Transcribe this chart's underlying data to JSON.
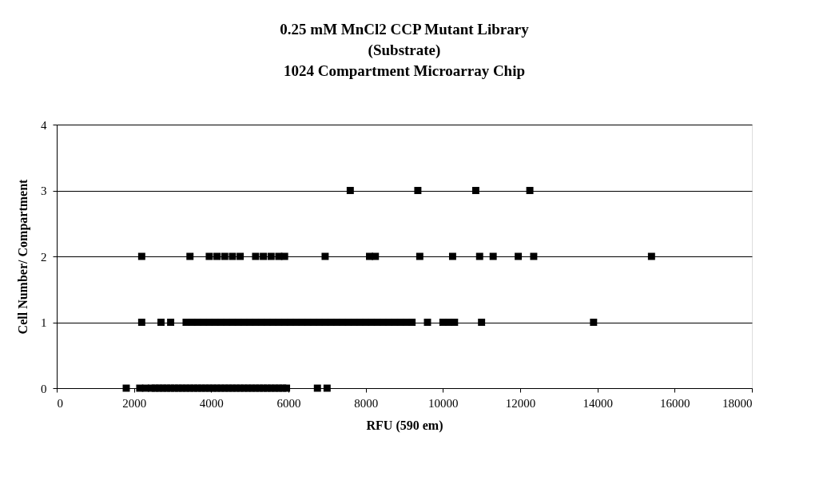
{
  "chart_data": {
    "type": "scatter",
    "title": [
      "0.25 mM MnCl2 CCP Mutant Library",
      "(Substrate)",
      "1024 Compartment Microarray Chip"
    ],
    "xlabel": "RFU (590 em)",
    "ylabel": "Cell Number/ Compartment",
    "xlim": [
      0,
      18000
    ],
    "xticks": [
      0,
      2000,
      4000,
      6000,
      8000,
      10000,
      12000,
      14000,
      16000,
      18000
    ],
    "ylim": [
      0,
      4
    ],
    "yticks": [
      0,
      1,
      2,
      3,
      4
    ],
    "grid": "y",
    "marker": "square",
    "legend": false,
    "series": [
      {
        "color": "#000000",
        "x": [
          1800,
          2150,
          2300,
          2450,
          2550,
          2650,
          2750,
          2850,
          2950,
          3050,
          3150,
          3250,
          3350,
          3450,
          3550,
          3650,
          3750,
          3850,
          3950,
          4050,
          4150,
          4250,
          4350,
          4450,
          4550,
          4650,
          4750,
          4850,
          4950,
          5050,
          5150,
          5250,
          5350,
          5450,
          5550,
          5650,
          5750,
          5850,
          5950,
          6750,
          7000
        ],
        "values": [
          0,
          0,
          0,
          0,
          0,
          0,
          0,
          0,
          0,
          0,
          0,
          0,
          0,
          0,
          0,
          0,
          0,
          0,
          0,
          0,
          0,
          0,
          0,
          0,
          0,
          0,
          0,
          0,
          0,
          0,
          0,
          0,
          0,
          0,
          0,
          0,
          0,
          0,
          0,
          0,
          0
        ]
      },
      {
        "color": "#000000",
        "x": [
          2200,
          2700,
          2950,
          3350,
          3500,
          3650,
          3800,
          3950,
          4100,
          4250,
          4400,
          4550,
          4700,
          4850,
          5000,
          5150,
          5300,
          5450,
          5600,
          5750,
          5900,
          6050,
          6200,
          6350,
          6500,
          6650,
          6800,
          6950,
          7100,
          7250,
          7400,
          7550,
          7700,
          7850,
          8000,
          8150,
          8300,
          8450,
          8600,
          8750,
          8900,
          9050,
          9200,
          9600,
          10000,
          10150,
          10300,
          11000,
          13900
        ],
        "values": [
          1,
          1,
          1,
          1,
          1,
          1,
          1,
          1,
          1,
          1,
          1,
          1,
          1,
          1,
          1,
          1,
          1,
          1,
          1,
          1,
          1,
          1,
          1,
          1,
          1,
          1,
          1,
          1,
          1,
          1,
          1,
          1,
          1,
          1,
          1,
          1,
          1,
          1,
          1,
          1,
          1,
          1,
          1,
          1,
          1,
          1,
          1,
          1,
          1
        ]
      },
      {
        "color": "#000000",
        "x": [
          2200,
          3450,
          3950,
          4150,
          4350,
          4550,
          4750,
          5150,
          5350,
          5550,
          5750,
          5900,
          6950,
          8100,
          8250,
          9400,
          10250,
          10950,
          11300,
          11950,
          12350,
          15400
        ],
        "values": [
          2,
          2,
          2,
          2,
          2,
          2,
          2,
          2,
          2,
          2,
          2,
          2,
          2,
          2,
          2,
          2,
          2,
          2,
          2,
          2,
          2,
          2
        ]
      },
      {
        "color": "#000000",
        "x": [
          7600,
          9350,
          10850,
          12250
        ],
        "values": [
          3,
          3,
          3,
          3
        ]
      }
    ]
  }
}
